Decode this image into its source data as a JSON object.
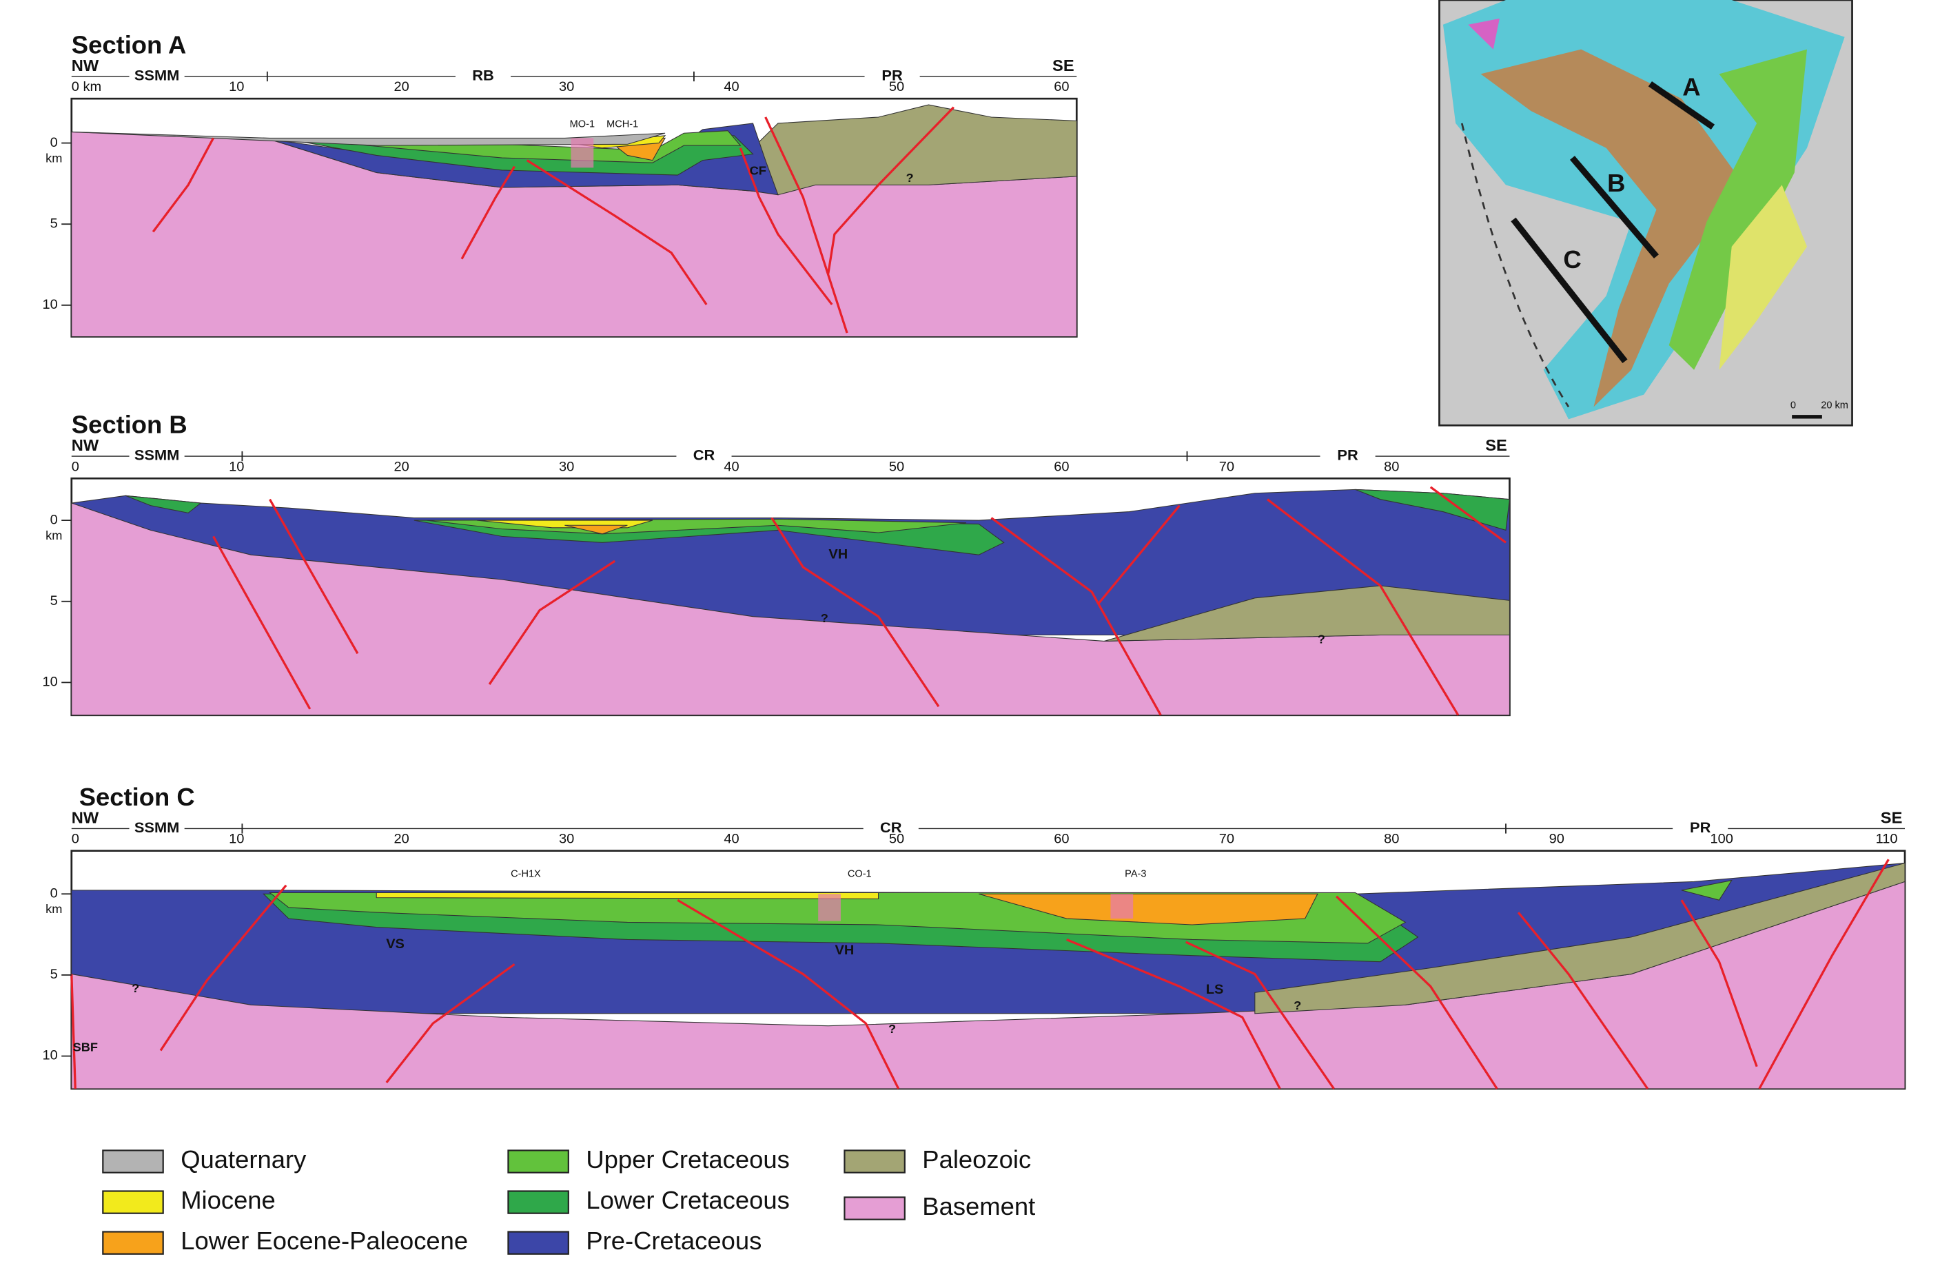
{
  "sections": [
    {
      "title": "Section A",
      "left_end": "NW",
      "right_end": "SE",
      "markers": [
        "SSMM",
        "RB",
        "PR"
      ],
      "distance_ticks": [
        "0 km",
        "10",
        "20",
        "30",
        "40",
        "50",
        "60"
      ],
      "depth_ticks": [
        "0",
        "5",
        "10"
      ],
      "depth_unit": "km",
      "labels": [
        "MO-1",
        "MCH-1",
        "CF",
        "?"
      ]
    },
    {
      "title": "Section B",
      "left_end": "NW",
      "right_end": "SE",
      "markers": [
        "SSMM",
        "CR",
        "PR"
      ],
      "distance_ticks": [
        "0",
        "10",
        "20",
        "30",
        "40",
        "50",
        "60",
        "70",
        "80"
      ],
      "depth_ticks": [
        "0",
        "5",
        "10"
      ],
      "depth_unit": "km",
      "labels": [
        "VH",
        "?",
        "?"
      ]
    },
    {
      "title": "Section C",
      "left_end": "NW",
      "right_end": "SE",
      "markers": [
        "SSMM",
        "CR",
        "PR"
      ],
      "distance_ticks": [
        "0",
        "10",
        "20",
        "30",
        "40",
        "50",
        "60",
        "70",
        "80",
        "90",
        "100",
        "110"
      ],
      "depth_ticks": [
        "0",
        "5",
        "10"
      ],
      "depth_unit": "km",
      "labels": [
        "C-H1X",
        "CO-1",
        "PA-3",
        "VS",
        "VH",
        "LS",
        "?",
        "?",
        "?",
        "SBF"
      ]
    }
  ],
  "map": {
    "lines": [
      "A",
      "B",
      "C"
    ],
    "scale": [
      "0",
      "20 km"
    ]
  },
  "legend": [
    {
      "label": "Quaternary",
      "color": "#b3b3b3"
    },
    {
      "label": "Miocene",
      "color": "#f2ea1c"
    },
    {
      "label": "Lower Eocene-Paleocene",
      "color": "#f7a21b"
    },
    {
      "label": "Upper Cretaceous",
      "color": "#62c23c"
    },
    {
      "label": "Lower Cretaceous",
      "color": "#2fa84a"
    },
    {
      "label": "Pre-Cretaceous",
      "color": "#3c46a8"
    },
    {
      "label": "Paleozoic",
      "color": "#a3a574"
    },
    {
      "label": "Basement",
      "color": "#e59ed4"
    }
  ]
}
